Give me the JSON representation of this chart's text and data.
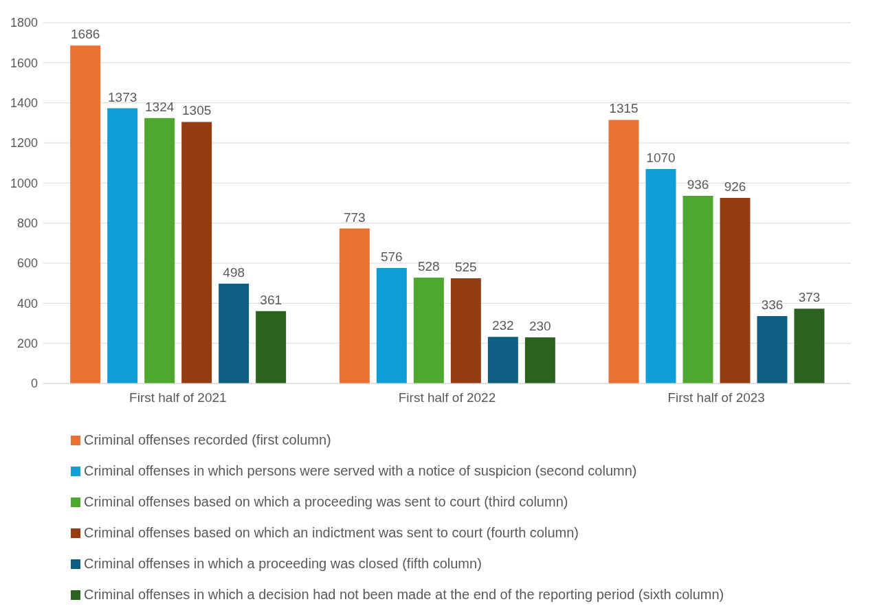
{
  "chart_data": {
    "type": "bar",
    "categories": [
      "First half of 2021",
      "First half of 2022",
      "First half of 2023"
    ],
    "series": [
      {
        "name": "Criminal offenses recorded (first column)",
        "color": "#e97132",
        "values": [
          1686,
          773,
          1315
        ]
      },
      {
        "name": "Criminal offenses in which persons were served with a notice of suspicion (second column)",
        "color": "#0f9ed5",
        "values": [
          1373,
          576,
          1070
        ]
      },
      {
        "name": "Criminal offenses based on which a proceeding was sent to court (third column)",
        "color": "#4ea72e",
        "values": [
          1324,
          528,
          936
        ]
      },
      {
        "name": "Criminal offenses based on which an indictment was sent to court (fourth column)",
        "color": "#963c11",
        "values": [
          1305,
          525,
          926
        ]
      },
      {
        "name": "Criminal offenses in which a proceeding was closed (fifth column)",
        "color": "#0d5e80",
        "values": [
          498,
          232,
          336
        ]
      },
      {
        "name": "Criminal offenses in which a decision had not been made at the end of the reporting period (sixth column)",
        "color": "#2b631e",
        "values": [
          361,
          230,
          373
        ]
      }
    ],
    "ylim": [
      0,
      1800
    ],
    "yticks": [
      0,
      200,
      400,
      600,
      800,
      1000,
      1200,
      1400,
      1600,
      1800
    ],
    "grid": "y",
    "legend": "bottom",
    "data_labels": true
  }
}
